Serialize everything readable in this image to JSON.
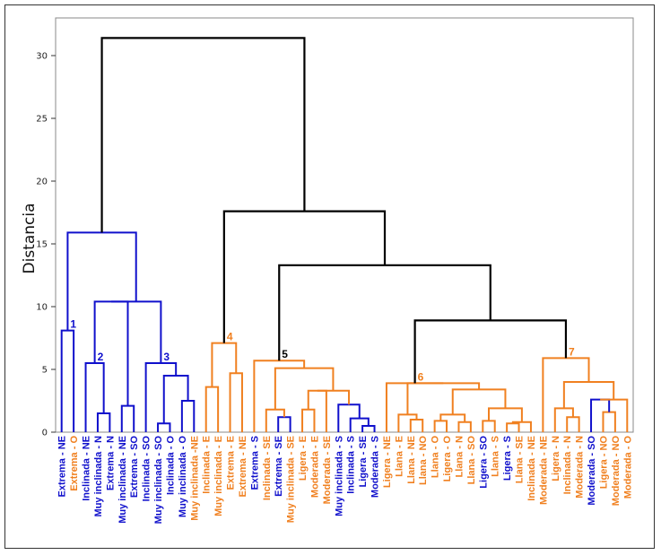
{
  "chart_data": {
    "type": "dendrogram",
    "ylabel": "Distancia",
    "ylim": [
      0,
      33
    ],
    "yticks": [
      0,
      5,
      10,
      15,
      20,
      25,
      30
    ],
    "grid": false,
    "colors": {
      "blue": "#1010cc",
      "orange": "#f08020",
      "black": "#000000"
    },
    "leaves": [
      {
        "label": "Extrema - NE",
        "color": "blue"
      },
      {
        "label": "Extrema - O",
        "color": "orange"
      },
      {
        "label": "Inclinada - NE",
        "color": "blue"
      },
      {
        "label": "Muy inclinada - N",
        "color": "blue"
      },
      {
        "label": "Extrema - N",
        "color": "blue"
      },
      {
        "label": "Muy inclinada - NE",
        "color": "blue"
      },
      {
        "label": "Extrema - SO",
        "color": "blue"
      },
      {
        "label": "Inclinada - SO",
        "color": "blue"
      },
      {
        "label": "Muy inclinada - SO",
        "color": "blue"
      },
      {
        "label": "Inclinada - O",
        "color": "blue"
      },
      {
        "label": "Muy inclinada - O",
        "color": "blue"
      },
      {
        "label": "Muy inclinada -NE",
        "color": "orange"
      },
      {
        "label": "Inclinada - E",
        "color": "orange"
      },
      {
        "label": "Muy inclinada - E",
        "color": "orange"
      },
      {
        "label": "Extrema - E",
        "color": "orange"
      },
      {
        "label": "Extrema - NE",
        "color": "orange"
      },
      {
        "label": "Extrema - S",
        "color": "blue"
      },
      {
        "label": "Inclinada - SE",
        "color": "orange"
      },
      {
        "label": "Extrema - SE",
        "color": "blue"
      },
      {
        "label": "Muy inclinada - SE",
        "color": "orange"
      },
      {
        "label": "Ligera - E",
        "color": "orange"
      },
      {
        "label": "Moderada - E",
        "color": "orange"
      },
      {
        "label": "Moderada - SE",
        "color": "orange"
      },
      {
        "label": "Muy inclinada - S",
        "color": "blue"
      },
      {
        "label": "Inclinada - S",
        "color": "blue"
      },
      {
        "label": "Ligera - SE",
        "color": "blue"
      },
      {
        "label": "Moderada - S",
        "color": "blue"
      },
      {
        "label": "Ligera - NE",
        "color": "orange"
      },
      {
        "label": "Llana - E",
        "color": "orange"
      },
      {
        "label": "Llana - NE",
        "color": "orange"
      },
      {
        "label": "Llana - NO",
        "color": "orange"
      },
      {
        "label": "Llana - O",
        "color": "orange"
      },
      {
        "label": "Ligera - O",
        "color": "orange"
      },
      {
        "label": "Llana - N",
        "color": "orange"
      },
      {
        "label": "Llana - SO",
        "color": "orange"
      },
      {
        "label": "Ligera - SO",
        "color": "blue"
      },
      {
        "label": "Llana - S",
        "color": "orange"
      },
      {
        "label": "Ligera - S",
        "color": "blue"
      },
      {
        "label": "Llana - SE",
        "color": "orange"
      },
      {
        "label": "Inclinada - NE",
        "color": "orange"
      },
      {
        "label": "Moderada - NE",
        "color": "orange"
      },
      {
        "label": "Ligera - N",
        "color": "orange"
      },
      {
        "label": "Inclinada - N",
        "color": "orange"
      },
      {
        "label": "Moderada - N",
        "color": "orange"
      },
      {
        "label": "Moderada - SO",
        "color": "blue"
      },
      {
        "label": "Ligera - NO",
        "color": "orange"
      },
      {
        "label": "Moderada - NO",
        "color": "orange"
      },
      {
        "label": "Moderada - O",
        "color": "orange"
      }
    ],
    "merges": [
      {
        "id": "c1",
        "children": [
          0,
          1
        ],
        "height": 8.1,
        "color": "blue"
      },
      {
        "id": "c2",
        "children": [
          3,
          4
        ],
        "height": 1.5,
        "color": "blue"
      },
      {
        "id": "c3",
        "children": [
          2,
          "c2"
        ],
        "height": 5.5,
        "color": "blue"
      },
      {
        "id": "c4",
        "children": [
          5,
          6
        ],
        "height": 2.1,
        "color": "blue"
      },
      {
        "id": "c5",
        "children": [
          "c3",
          "c4"
        ],
        "height": 10.4,
        "color": "blue"
      },
      {
        "id": "c6",
        "children": [
          8,
          9
        ],
        "height": 0.7,
        "color": "blue"
      },
      {
        "id": "c7",
        "children": [
          10,
          11
        ],
        "height": 2.5,
        "color": "blue"
      },
      {
        "id": "c8",
        "children": [
          "c6",
          "c7"
        ],
        "height": 4.5,
        "color": "blue"
      },
      {
        "id": "c9",
        "children": [
          7,
          "c8"
        ],
        "height": 5.5,
        "color": "blue"
      },
      {
        "id": "c10",
        "children": [
          "c5",
          "c9"
        ],
        "height": 10.4,
        "color": "blue"
      },
      {
        "id": "c11",
        "children": [
          "c1",
          "c10"
        ],
        "height": 15.9,
        "color": "blue"
      },
      {
        "id": "c12",
        "children": [
          12,
          13
        ],
        "height": 3.6,
        "color": "orange"
      },
      {
        "id": "c13",
        "children": [
          14,
          15
        ],
        "height": 4.7,
        "color": "orange"
      },
      {
        "id": "c14",
        "children": [
          "c12",
          "c13"
        ],
        "height": 7.1,
        "color": "orange"
      },
      {
        "id": "c15",
        "children": [
          18,
          19
        ],
        "height": 1.2,
        "color": "blue"
      },
      {
        "id": "c16",
        "children": [
          17,
          "c15"
        ],
        "height": 1.8,
        "color": "orange"
      },
      {
        "id": "c17",
        "children": [
          20,
          21
        ],
        "height": 1.8,
        "color": "orange"
      },
      {
        "id": "c18",
        "children": [
          22,
          "c17"
        ],
        "height": 3.3,
        "color": "orange"
      },
      {
        "id": "c19",
        "children": [
          25,
          26
        ],
        "height": 0.5,
        "color": "blue"
      },
      {
        "id": "c20",
        "children": [
          24,
          "c19"
        ],
        "height": 1.1,
        "color": "blue"
      },
      {
        "id": "c21",
        "children": [
          23,
          "c20"
        ],
        "height": 2.2,
        "color": "blue"
      },
      {
        "id": "c22",
        "children": [
          "c18",
          "c21"
        ],
        "height": 3.3,
        "color": "orange"
      },
      {
        "id": "c23",
        "children": [
          "c16",
          "c22"
        ],
        "height": 5.1,
        "color": "orange"
      },
      {
        "id": "c24",
        "children": [
          16,
          "c23"
        ],
        "height": 5.7,
        "color": "orange"
      },
      {
        "id": "c25",
        "children": [
          29,
          30
        ],
        "height": 1.0,
        "color": "orange"
      },
      {
        "id": "c26",
        "children": [
          28,
          "c25"
        ],
        "height": 1.4,
        "color": "orange"
      },
      {
        "id": "c27",
        "children": [
          31,
          32
        ],
        "height": 0.9,
        "color": "orange"
      },
      {
        "id": "c28",
        "children": [
          33,
          34
        ],
        "height": 0.8,
        "color": "orange"
      },
      {
        "id": "c29",
        "children": [
          "c27",
          "c28"
        ],
        "height": 1.4,
        "color": "orange"
      },
      {
        "id": "c30",
        "children": [
          35,
          36
        ],
        "height": 0.9,
        "color": "orange"
      },
      {
        "id": "c31",
        "children": [
          37,
          38
        ],
        "height": 0.7,
        "color": "orange"
      },
      {
        "id": "c32",
        "children": [
          39,
          "c31"
        ],
        "height": 0.8,
        "color": "orange"
      },
      {
        "id": "c33",
        "children": [
          "c30",
          "c32"
        ],
        "height": 1.9,
        "color": "orange"
      },
      {
        "id": "c34",
        "children": [
          "c29",
          "c33"
        ],
        "height": 3.4,
        "color": "orange"
      },
      {
        "id": "c35",
        "children": [
          "c26",
          "c34"
        ],
        "height": 3.9,
        "color": "orange"
      },
      {
        "id": "c36",
        "children": [
          27,
          "c35"
        ],
        "height": 3.9,
        "color": "orange"
      },
      {
        "id": "c37",
        "children": [
          42,
          43
        ],
        "height": 1.2,
        "color": "orange"
      },
      {
        "id": "c38",
        "children": [
          41,
          "c37"
        ],
        "height": 1.9,
        "color": "orange"
      },
      {
        "id": "c39",
        "children": [
          45,
          46
        ],
        "height": 1.6,
        "color": "orange"
      },
      {
        "id": "c40",
        "children": [
          44,
          "c39"
        ],
        "height": 2.6,
        "color": "blue"
      },
      {
        "id": "c41",
        "children": [
          47,
          "c40"
        ],
        "height": 2.6,
        "color": "orange"
      },
      {
        "id": "c42",
        "children": [
          "c38",
          "c41"
        ],
        "height": 4.0,
        "color": "orange"
      },
      {
        "id": "c43",
        "children": [
          40,
          "c42"
        ],
        "height": 5.9,
        "color": "orange"
      },
      {
        "id": "c44",
        "children": [
          "c36",
          "c43"
        ],
        "height": 8.9,
        "color": "black"
      },
      {
        "id": "c45",
        "children": [
          "c24",
          "c44"
        ],
        "height": 13.3,
        "color": "black"
      },
      {
        "id": "c46",
        "children": [
          "c14",
          "c45"
        ],
        "height": 17.6,
        "color": "black"
      },
      {
        "id": "c47",
        "children": [
          "c11",
          "c46"
        ],
        "height": 31.4,
        "color": "black"
      }
    ],
    "cluster_labels": [
      {
        "text": "1",
        "node": "c1",
        "color": "blue"
      },
      {
        "text": "2",
        "node": "c3",
        "color": "blue"
      },
      {
        "text": "3",
        "node": "c9",
        "color": "blue"
      },
      {
        "text": "4",
        "node": "c14",
        "color": "orange"
      },
      {
        "text": "5",
        "node": "c24",
        "color": "black"
      },
      {
        "text": "6",
        "node": "c36",
        "color": "orange"
      },
      {
        "text": "7",
        "node": "c43",
        "color": "orange"
      }
    ]
  }
}
